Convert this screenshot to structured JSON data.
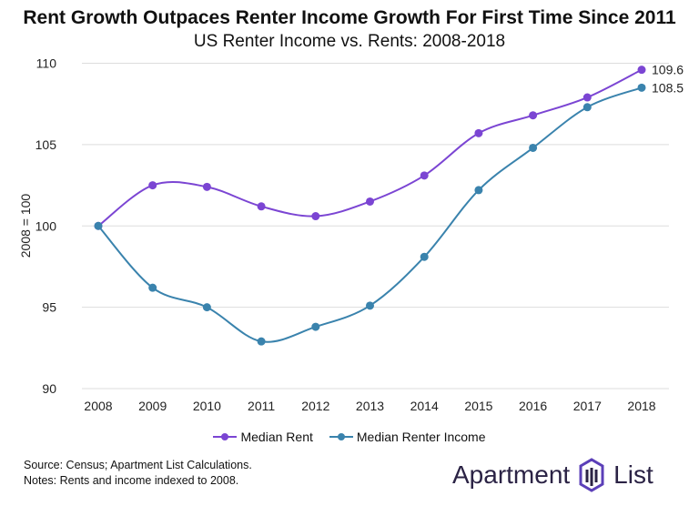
{
  "chart_data": {
    "type": "line",
    "title": "Rent Growth Outpaces Renter Income Growth For First Time Since 2011",
    "subtitle": "US Renter Income vs. Rents: 2008-2018",
    "xlabel": "",
    "ylabel": "2008 = 100",
    "categories": [
      "2008",
      "2009",
      "2010",
      "2011",
      "2012",
      "2013",
      "2014",
      "2015",
      "2016",
      "2017",
      "2018"
    ],
    "ylim": [
      90,
      110
    ],
    "yticks": [
      90,
      95,
      100,
      105,
      110
    ],
    "grid": true,
    "legend_position": "bottom",
    "series": [
      {
        "name": "Median Rent",
        "color": "#7b45d3",
        "values": [
          100,
          102.5,
          102.4,
          101.2,
          100.6,
          101.5,
          103.1,
          105.7,
          106.8,
          107.9,
          109.6
        ],
        "end_label": "109.6"
      },
      {
        "name": "Median Renter Income",
        "color": "#3a83ad",
        "values": [
          100,
          96.2,
          95.0,
          92.9,
          93.8,
          95.1,
          98.1,
          102.2,
          104.8,
          107.3,
          108.5
        ],
        "end_label": "108.5"
      }
    ]
  },
  "notes": {
    "source": "Source: Census; Apartment List Calculations.",
    "indexing": "Notes: Rents and income indexed to 2008."
  },
  "logo": {
    "text_left": "Apartment",
    "text_right": "List"
  }
}
